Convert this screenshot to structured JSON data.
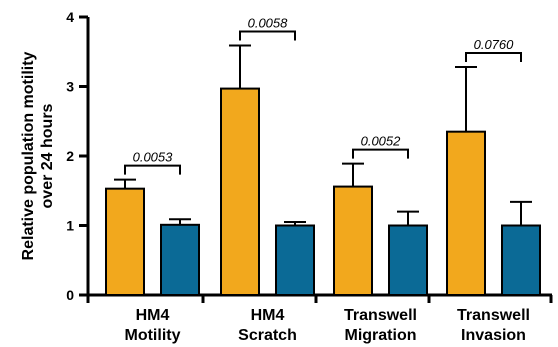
{
  "chart_data": {
    "type": "bar",
    "title": "",
    "xlabel": "",
    "ylabel": "Relative population motility over 24 hours",
    "ylabel_lines": [
      "Relative population motility",
      "over 24 hours"
    ],
    "ylim": [
      0,
      4
    ],
    "yticks": [
      0,
      1,
      2,
      3,
      4
    ],
    "grid": false,
    "legend": "none",
    "groups": [
      {
        "label": "HM4 Motility",
        "label_lines": [
          "HM4",
          "Motility"
        ],
        "bars": [
          {
            "value": 1.53,
            "error": 0.13,
            "color": "#F2A81D"
          },
          {
            "value": 1.01,
            "error": 0.08,
            "color": "#0B6A96"
          }
        ],
        "p_value": "0.0053"
      },
      {
        "label": "HM4 Scratch",
        "label_lines": [
          "HM4",
          "Scratch"
        ],
        "bars": [
          {
            "value": 2.97,
            "error": 0.62,
            "color": "#F2A81D"
          },
          {
            "value": 1.0,
            "error": 0.05,
            "color": "#0B6A96"
          }
        ],
        "p_value": "0.0058"
      },
      {
        "label": "Transwell Migration",
        "label_lines": [
          "Transwell",
          "Migration"
        ],
        "bars": [
          {
            "value": 1.56,
            "error": 0.33,
            "color": "#F2A81D"
          },
          {
            "value": 1.0,
            "error": 0.2,
            "color": "#0B6A96"
          }
        ],
        "p_value": "0.0052"
      },
      {
        "label": "Transwell Invasion",
        "label_lines": [
          "Transwell",
          "Invasion"
        ],
        "bars": [
          {
            "value": 2.35,
            "error": 0.93,
            "color": "#F2A81D"
          },
          {
            "value": 1.0,
            "error": 0.34,
            "color": "#0B6A96"
          }
        ],
        "p_value": "0.0760"
      }
    ],
    "colors": {
      "series_a": "#F2A81D",
      "series_b": "#0B6A96",
      "axis": "#000000"
    }
  }
}
